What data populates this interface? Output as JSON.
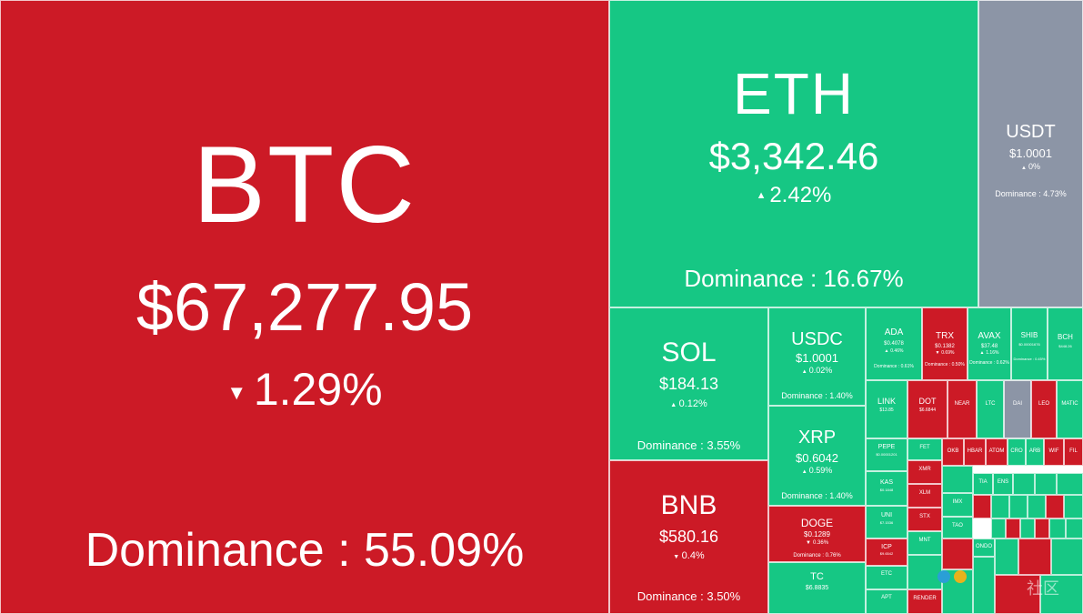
{
  "tiles": {
    "btc": {
      "symbol": "BTC",
      "price": "$67,277.95",
      "change": "1.29%",
      "direction": "down",
      "dominance": "Dominance : 55.09%"
    },
    "eth": {
      "symbol": "ETH",
      "price": "$3,342.46",
      "change": "2.42%",
      "direction": "up",
      "dominance": "Dominance : 16.67%"
    },
    "usdt": {
      "symbol": "USDT",
      "price": "$1.0001",
      "change": "0%",
      "direction": "flat",
      "dominance": "Dominance : 4.73%"
    },
    "sol": {
      "symbol": "SOL",
      "price": "$184.13",
      "change": "0.12%",
      "direction": "up",
      "dominance": "Dominance : 3.55%"
    },
    "bnb": {
      "symbol": "BNB",
      "price": "$580.16",
      "change": "0.4%",
      "direction": "down",
      "dominance": "Dominance : 3.50%"
    },
    "usdc": {
      "symbol": "USDC",
      "price": "$1.0001",
      "change": "0.02%",
      "direction": "up",
      "dominance": "Dominance : 1.40%"
    },
    "xrp": {
      "symbol": "XRP",
      "price": "$0.6042",
      "change": "0.59%",
      "direction": "up",
      "dominance": "Dominance : 1.40%"
    },
    "doge": {
      "symbol": "DOGE",
      "price": "$0.1289",
      "change": "0.36%",
      "direction": "down",
      "dominance": "Dominance : 0.76%"
    },
    "ton": {
      "symbol": "TC",
      "price": "$6.8835",
      "change": "",
      "direction": "up",
      "dominance": ""
    },
    "ada": {
      "symbol": "ADA",
      "price": "$0.4078",
      "change": "0.46%",
      "direction": "up",
      "dominance": "Dominance : 0.61%"
    },
    "trx": {
      "symbol": "TRX",
      "price": "$0.1382",
      "change": "0.69%",
      "direction": "down",
      "dominance": "Dominance : 0.50%"
    },
    "avax": {
      "symbol": "AVAX",
      "price": "$37.48",
      "change": "1.16%",
      "direction": "up",
      "dominance": "Dominance : 0.62%"
    },
    "shib": {
      "symbol": "SHIB",
      "price": "$0.00001676",
      "change": "",
      "direction": "up",
      "dominance": "Dominance : 0.45%"
    },
    "bch": {
      "symbol": "BCH",
      "price": "$448.26",
      "change": "",
      "direction": "up",
      "dominance": ""
    },
    "link": {
      "symbol": "LINK",
      "price": "$13.85",
      "change": "",
      "direction": "up",
      "dominance": ""
    },
    "dot": {
      "symbol": "DOT",
      "price": "$6.6844",
      "change": "",
      "direction": "down",
      "dominance": ""
    },
    "near": {
      "symbol": "NEAR",
      "price": "",
      "change": "",
      "direction": "down",
      "dominance": ""
    },
    "ltc": {
      "symbol": "LTC",
      "price": "",
      "change": "",
      "direction": "up",
      "dominance": ""
    },
    "dai": {
      "symbol": "DAI",
      "price": "",
      "change": "",
      "direction": "flat",
      "dominance": ""
    },
    "leo": {
      "symbol": "LEO",
      "price": "",
      "change": "",
      "direction": "down",
      "dominance": ""
    },
    "matic": {
      "symbol": "MATIC",
      "price": "",
      "change": "",
      "direction": "up",
      "dominance": ""
    },
    "pepe": {
      "symbol": "PEPE",
      "price": "$0.00001201",
      "change": "",
      "direction": "up",
      "dominance": ""
    },
    "kas": {
      "symbol": "KAS",
      "price": "$0.1848",
      "change": "",
      "direction": "up",
      "dominance": ""
    },
    "uni": {
      "symbol": "UNI",
      "price": "$7.1536",
      "change": "",
      "direction": "up",
      "dominance": ""
    },
    "icp": {
      "symbol": "ICP",
      "price": "$9.6542",
      "change": "",
      "direction": "down",
      "dominance": ""
    },
    "etc": {
      "symbol": "ETC",
      "price": "",
      "change": "",
      "direction": "up",
      "dominance": ""
    },
    "apt": {
      "symbol": "APT",
      "price": "",
      "change": "",
      "direction": "up",
      "dominance": ""
    },
    "xmr": {
      "symbol": "XMR",
      "price": "",
      "change": "",
      "direction": "down",
      "dominance": ""
    },
    "xlm": {
      "symbol": "XLM",
      "price": "",
      "change": "",
      "direction": "down",
      "dominance": ""
    },
    "stx": {
      "symbol": "STX",
      "price": "",
      "change": "",
      "direction": "down",
      "dominance": ""
    },
    "fet": {
      "symbol": "FET",
      "price": "",
      "change": "",
      "direction": "up",
      "dominance": ""
    },
    "mnt": {
      "symbol": "MNT",
      "price": "",
      "change": "",
      "direction": "up",
      "dominance": ""
    },
    "render": {
      "symbol": "RENDER",
      "price": "",
      "change": "",
      "direction": "down",
      "dominance": ""
    },
    "okb": {
      "symbol": "OKB",
      "price": "",
      "change": "",
      "direction": "down",
      "dominance": ""
    },
    "hbar": {
      "symbol": "HBAR",
      "price": "",
      "change": "",
      "direction": "down",
      "dominance": ""
    },
    "atom": {
      "symbol": "ATOM",
      "price": "",
      "change": "",
      "direction": "down",
      "dominance": ""
    },
    "cro": {
      "symbol": "CRO",
      "price": "",
      "change": "",
      "direction": "up",
      "dominance": ""
    },
    "arb": {
      "symbol": "ARB",
      "price": "",
      "change": "",
      "direction": "up",
      "dominance": ""
    },
    "wif": {
      "symbol": "WIF",
      "price": "",
      "change": "",
      "direction": "down",
      "dominance": ""
    },
    "fil": {
      "symbol": "FIL",
      "price": "",
      "change": "",
      "direction": "down",
      "dominance": ""
    },
    "imx": {
      "symbol": "IMX",
      "price": "",
      "change": "",
      "direction": "up",
      "dominance": ""
    },
    "tao": {
      "symbol": "TAO",
      "price": "",
      "change": "",
      "direction": "up",
      "dominance": ""
    },
    "tia": {
      "symbol": "TIA",
      "price": "",
      "change": "",
      "direction": "up",
      "dominance": ""
    },
    "ens": {
      "symbol": "ENS",
      "price": "",
      "change": "",
      "direction": "up",
      "dominance": ""
    },
    "ondo": {
      "symbol": "ONDO",
      "price": "",
      "change": "",
      "direction": "up",
      "dominance": ""
    }
  },
  "watermark": "社区"
}
